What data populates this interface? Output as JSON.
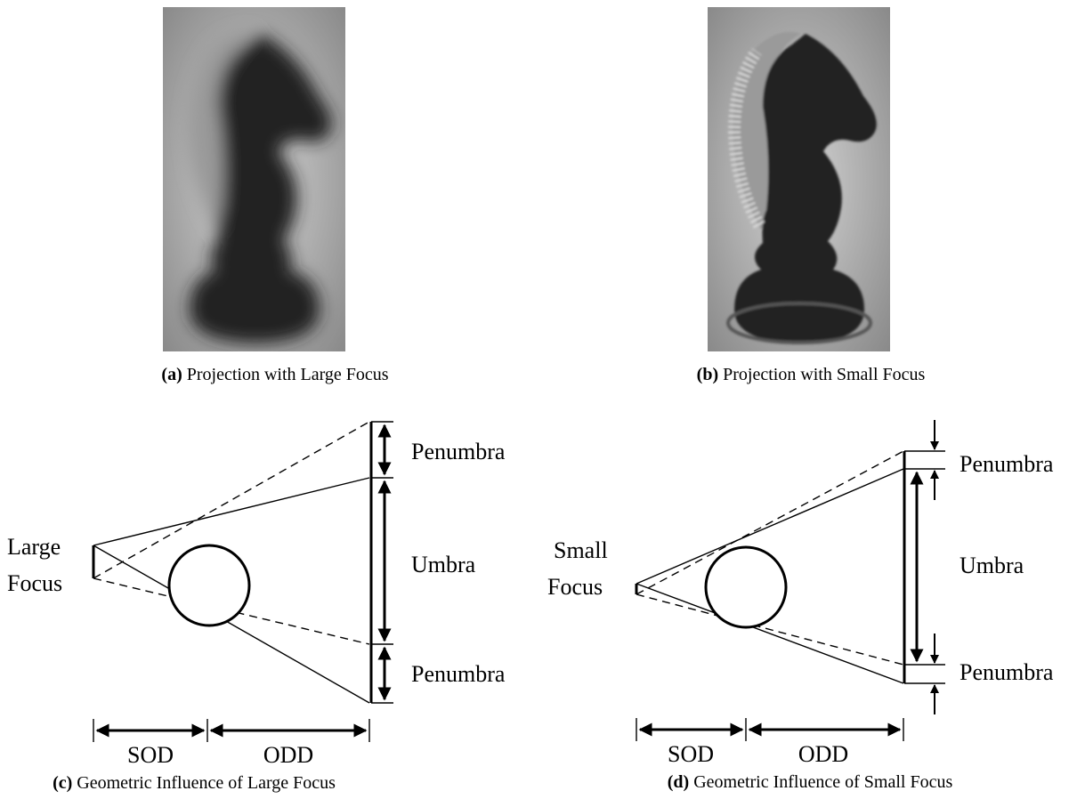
{
  "panels": [
    {
      "tag": "(a)",
      "caption": "Projection with Large Focus"
    },
    {
      "tag": "(b)",
      "caption": "Projection with Small Focus"
    },
    {
      "tag": "(c)",
      "caption": "Geometric Influence of Large Focus",
      "focus": [
        "Large",
        "Focus"
      ],
      "upper": "Penumbra",
      "middle": "Umbra",
      "lower": "Penumbra",
      "sod": "SOD",
      "odd": "ODD"
    },
    {
      "tag": "(d)",
      "caption": "Geometric Influence of Small Focus",
      "focus": [
        "Small",
        "Focus"
      ],
      "upper": "Penumbra",
      "middle": "Umbra",
      "lower": "Penumbra",
      "sod": "SOD",
      "odd": "ODD"
    }
  ]
}
